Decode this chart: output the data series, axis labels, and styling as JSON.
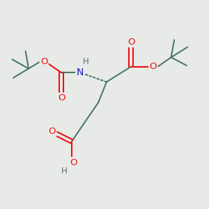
{
  "bg_color": "#e8eae8",
  "bond_color": "#4a7a6a",
  "atom_colors": {
    "O": "#ee1010",
    "N": "#1818cc",
    "H": "#5a7070",
    "C": "#4a7a6a"
  },
  "figsize": [
    3.0,
    3.0
  ],
  "dpi": 100,
  "xlim": [
    0,
    10
  ],
  "ylim": [
    0,
    10
  ]
}
